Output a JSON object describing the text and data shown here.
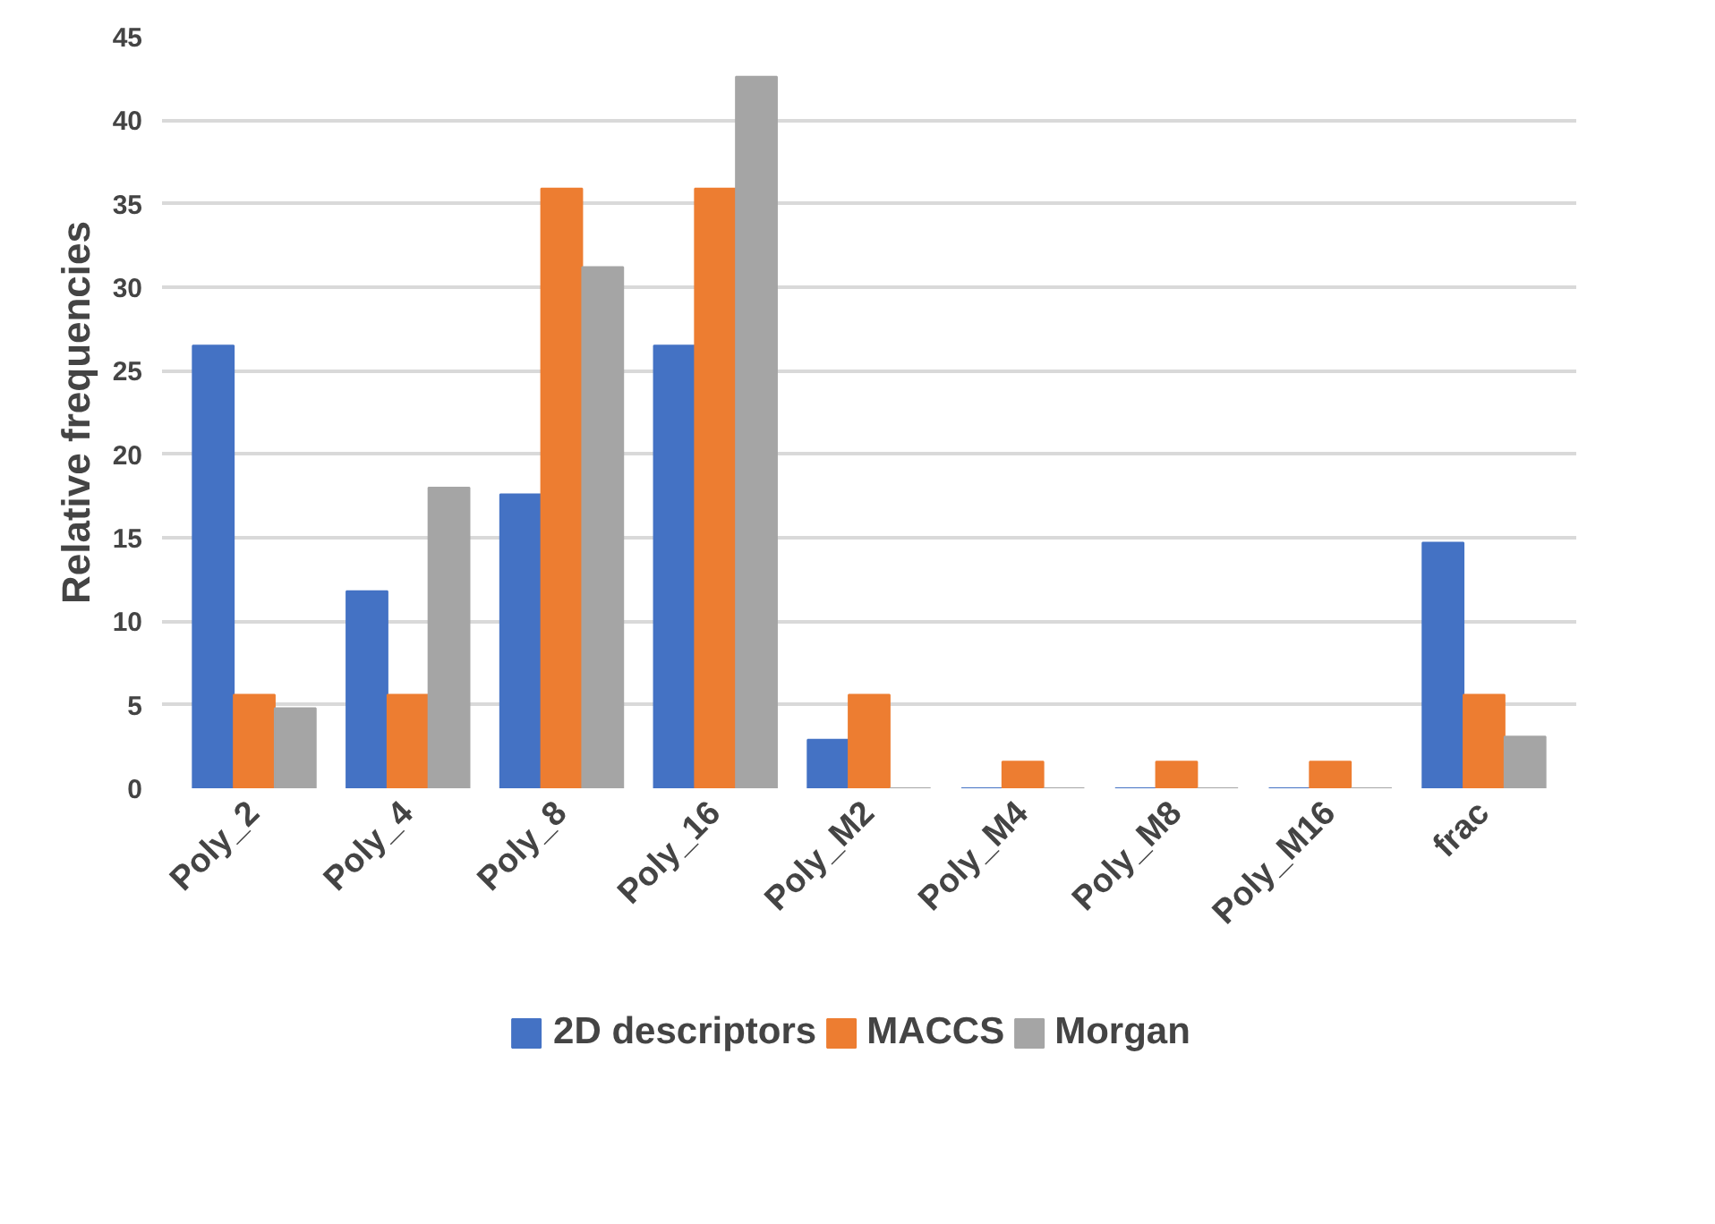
{
  "chart_data": {
    "type": "bar",
    "ylabel": "Relative frequencies",
    "categories": [
      "Poly_2",
      "Poly_4",
      "Poly_8",
      "Poly_16",
      "Poly_M2",
      "Poly_M4",
      "Poly_M8",
      "Poly_M16",
      "frac"
    ],
    "series": [
      {
        "name": "2D descriptors",
        "color": "#4472c4",
        "values": [
          26.5,
          11.8,
          17.6,
          26.5,
          2.9,
          0,
          0,
          0,
          14.7
        ]
      },
      {
        "name": "MACCS",
        "color": "#ed7d31",
        "values": [
          5.6,
          5.6,
          35.9,
          35.9,
          5.6,
          1.6,
          1.6,
          1.6,
          5.6
        ]
      },
      {
        "name": "Morgan",
        "color": "#a5a5a5",
        "values": [
          4.8,
          18,
          31.2,
          42.6,
          0,
          0,
          0,
          0,
          3.1
        ]
      }
    ],
    "ylim": [
      0,
      45
    ],
    "yticks": [
      0,
      5,
      10,
      15,
      20,
      25,
      30,
      35,
      40,
      45
    ],
    "grid": "y",
    "legend": "bottom"
  }
}
